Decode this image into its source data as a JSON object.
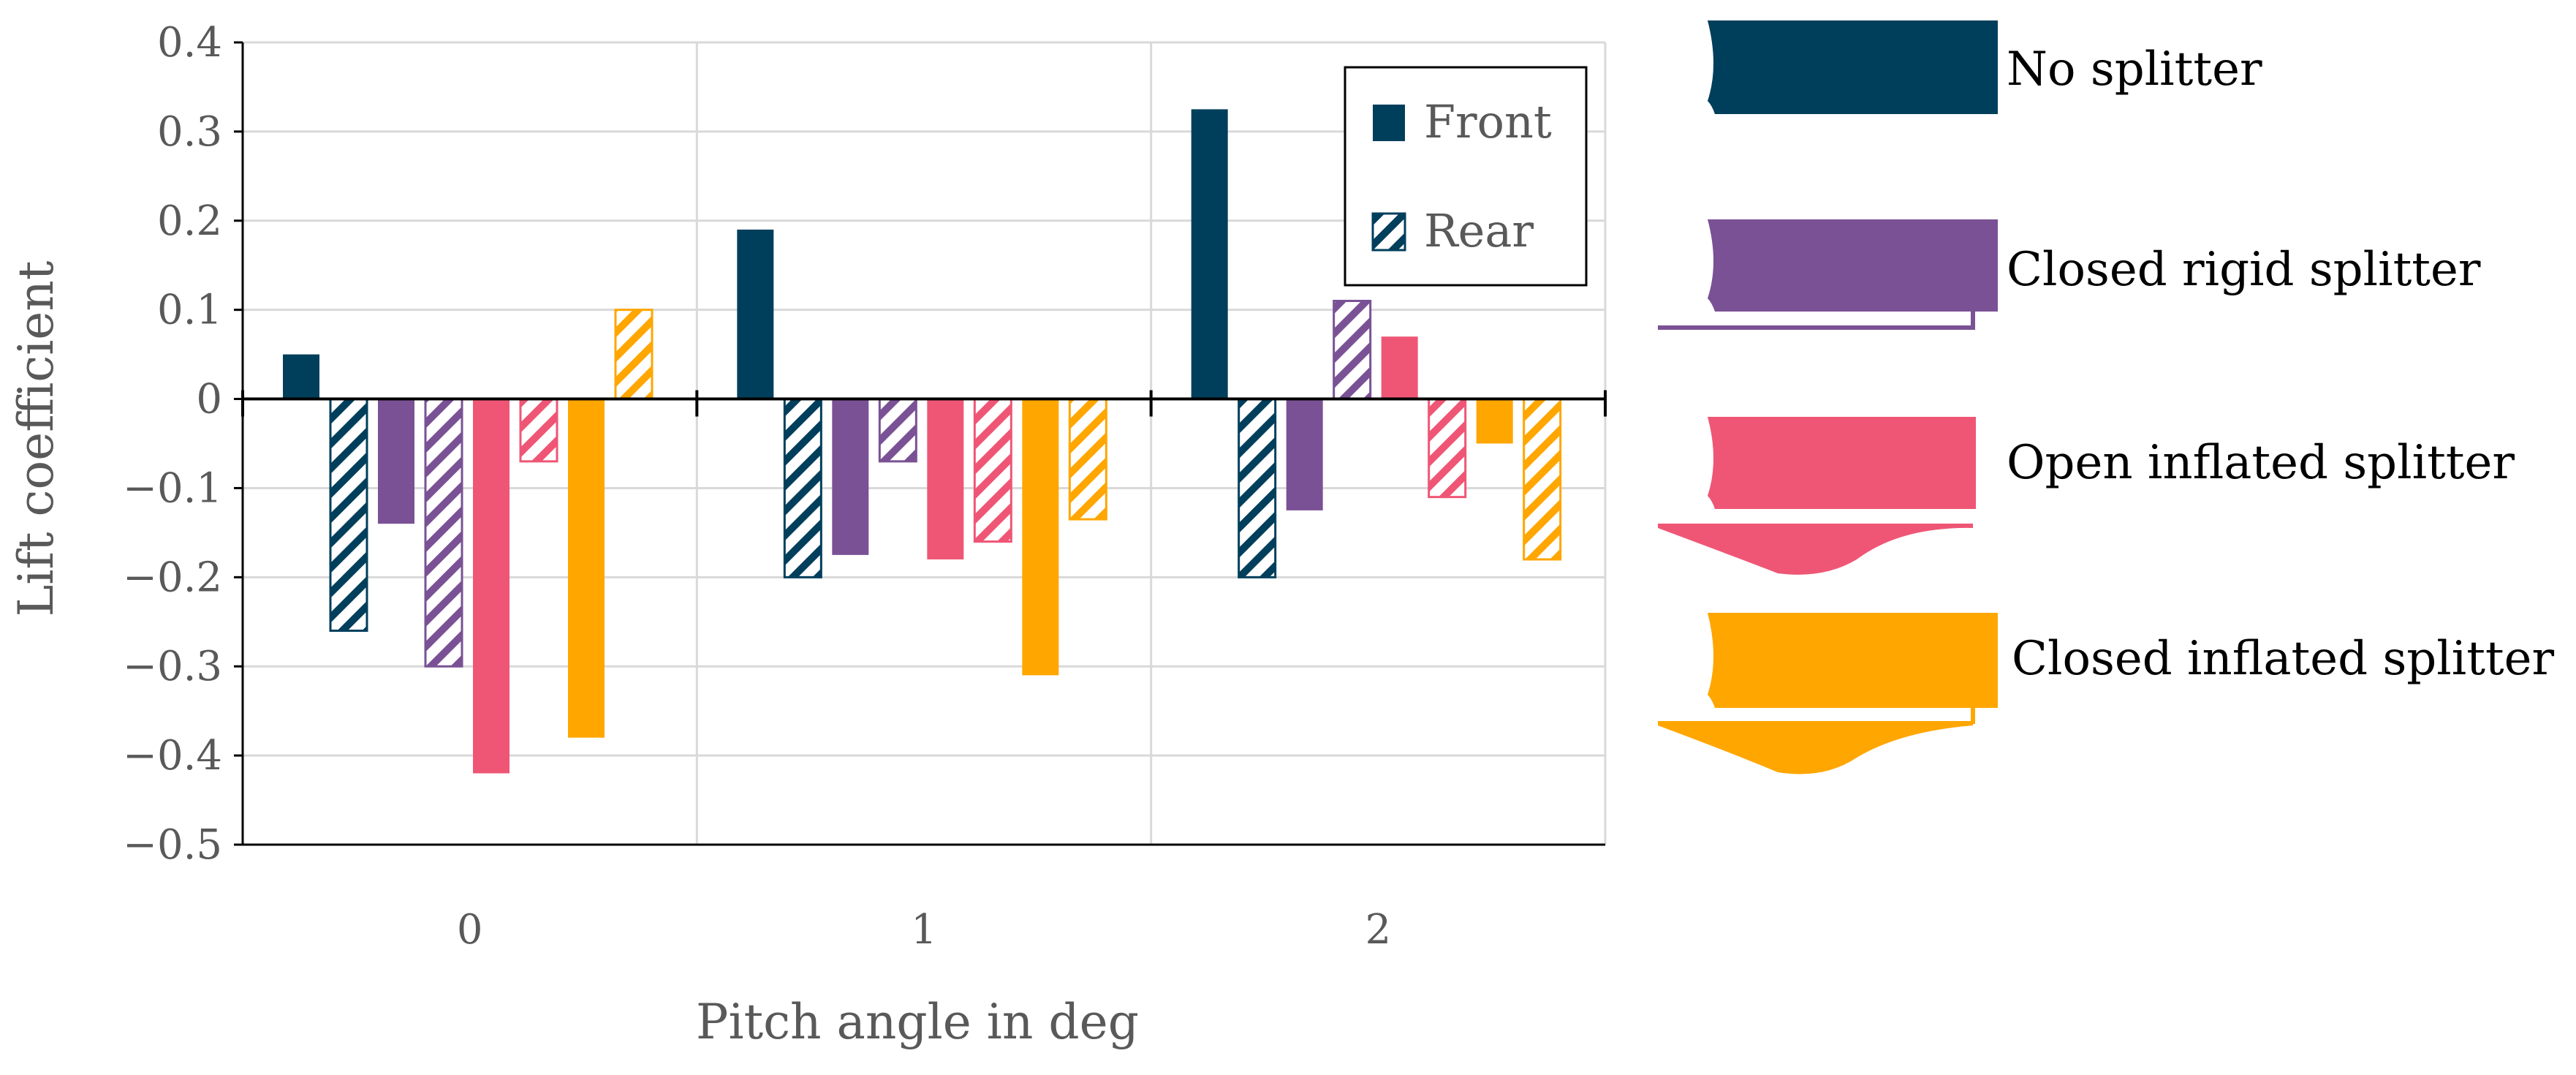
{
  "chart_data": {
    "type": "bar",
    "xlabel": "Pitch angle in deg",
    "ylabel": "Lift coefficient",
    "ylim": [
      -0.5,
      0.4
    ],
    "y_ticks": [
      0.4,
      0.3,
      0.2,
      0.1,
      0,
      -0.1,
      -0.2,
      -0.3,
      -0.4,
      -0.5
    ],
    "y_tick_labels": [
      "0.4",
      "0.3",
      "0.2",
      "0.1",
      "0",
      "−0.1",
      "−0.2",
      "−0.3",
      "−0.4",
      "−0.5"
    ],
    "categories": [
      "0",
      "1",
      "2"
    ],
    "grid": true,
    "legend": {
      "position": "top-right",
      "entries": [
        {
          "label": "Front",
          "style": "solid"
        },
        {
          "label": "Rear",
          "style": "hatched"
        }
      ]
    },
    "series": [
      {
        "name": "No splitter",
        "color": "#003f5c",
        "front": [
          0.05,
          0.19,
          0.325
        ],
        "rear": [
          -0.26,
          -0.2,
          -0.2
        ]
      },
      {
        "name": "Closed rigid splitter",
        "color": "#7a5195",
        "front": [
          -0.14,
          -0.175,
          -0.125
        ],
        "rear": [
          -0.3,
          -0.07,
          0.11
        ]
      },
      {
        "name": "Open inflated splitter",
        "color": "#ef5675",
        "front": [
          -0.42,
          -0.18,
          0.07
        ],
        "rear": [
          -0.07,
          -0.16,
          -0.11
        ]
      },
      {
        "name": "Closed inflated splitter",
        "color": "#ffa600",
        "front": [
          -0.38,
          -0.31,
          -0.05
        ],
        "rear": [
          0.1,
          -0.135,
          -0.18
        ]
      }
    ]
  }
}
